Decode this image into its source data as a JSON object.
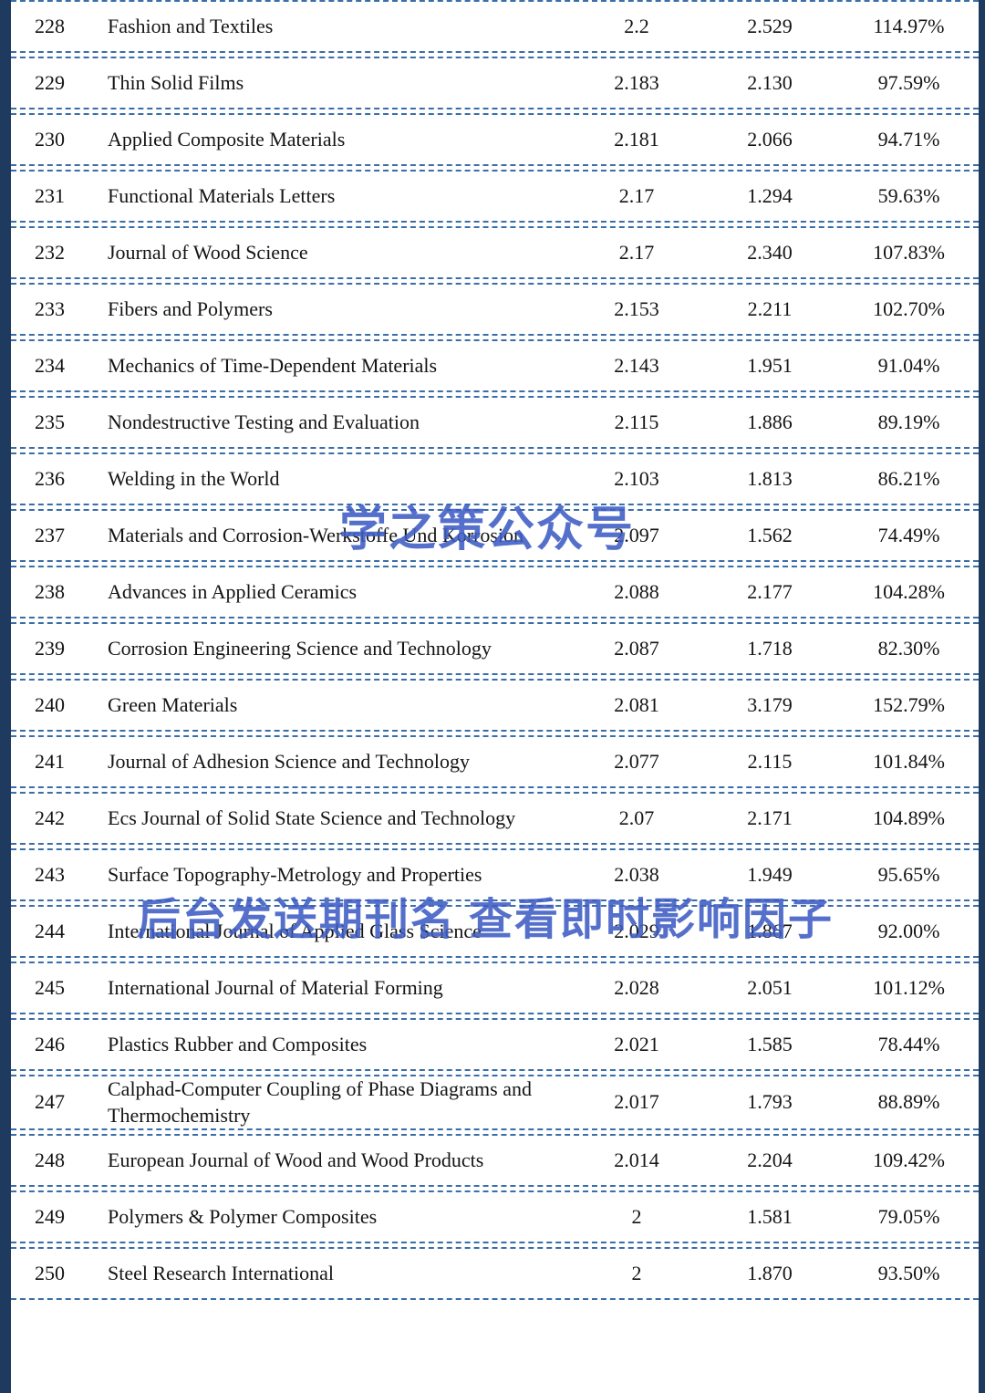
{
  "page": {
    "watermark_center": "学之策公众号",
    "watermark_lower": "后台发送期刊名 查看即时影响因子"
  },
  "colors": {
    "edge_bar": "#1f3a5f",
    "row_divider": "#3a6ea8",
    "watermark": "#3e5cc4",
    "text": "#141414"
  },
  "table": {
    "rows": [
      {
        "rank": "228",
        "journal": "Fashion and Textiles",
        "value1": "2.2",
        "value2": "2.529",
        "percent": "114.97%"
      },
      {
        "rank": "229",
        "journal": "Thin Solid Films",
        "value1": "2.183",
        "value2": "2.130",
        "percent": "97.59%"
      },
      {
        "rank": "230",
        "journal": "Applied Composite Materials",
        "value1": "2.181",
        "value2": "2.066",
        "percent": "94.71%"
      },
      {
        "rank": "231",
        "journal": "Functional Materials Letters",
        "value1": "2.17",
        "value2": "1.294",
        "percent": "59.63%"
      },
      {
        "rank": "232",
        "journal": "Journal of Wood Science",
        "value1": "2.17",
        "value2": "2.340",
        "percent": "107.83%"
      },
      {
        "rank": "233",
        "journal": "Fibers and Polymers",
        "value1": "2.153",
        "value2": "2.211",
        "percent": "102.70%"
      },
      {
        "rank": "234",
        "journal": "Mechanics of Time-Dependent Materials",
        "value1": "2.143",
        "value2": "1.951",
        "percent": "91.04%"
      },
      {
        "rank": "235",
        "journal": "Nondestructive Testing and Evaluation",
        "value1": "2.115",
        "value2": "1.886",
        "percent": "89.19%"
      },
      {
        "rank": "236",
        "journal": "Welding in the World",
        "value1": "2.103",
        "value2": "1.813",
        "percent": "86.21%"
      },
      {
        "rank": "237",
        "journal": "Materials and Corrosion-Werkstoffe Und Korrosion",
        "value1": "2.097",
        "value2": "1.562",
        "percent": "74.49%"
      },
      {
        "rank": "238",
        "journal": "Advances in Applied Ceramics",
        "value1": "2.088",
        "value2": "2.177",
        "percent": "104.28%"
      },
      {
        "rank": "239",
        "journal": "Corrosion Engineering Science and Technology",
        "value1": "2.087",
        "value2": "1.718",
        "percent": "82.30%"
      },
      {
        "rank": "240",
        "journal": "Green Materials",
        "value1": "2.081",
        "value2": "3.179",
        "percent": "152.79%"
      },
      {
        "rank": "241",
        "journal": "Journal of Adhesion Science and Technology",
        "value1": "2.077",
        "value2": "2.115",
        "percent": "101.84%"
      },
      {
        "rank": "242",
        "journal": "Ecs Journal of Solid State Science and Technology",
        "value1": "2.07",
        "value2": "2.171",
        "percent": "104.89%"
      },
      {
        "rank": "243",
        "journal": "Surface Topography-Metrology and Properties",
        "value1": "2.038",
        "value2": "1.949",
        "percent": "95.65%"
      },
      {
        "rank": "244",
        "journal": "International Journal of Applied Glass Science",
        "value1": "2.029",
        "value2": "1.867",
        "percent": "92.00%"
      },
      {
        "rank": "245",
        "journal": "International Journal of Material Forming",
        "value1": "2.028",
        "value2": "2.051",
        "percent": "101.12%"
      },
      {
        "rank": "246",
        "journal": "Plastics Rubber and Composites",
        "value1": "2.021",
        "value2": "1.585",
        "percent": "78.44%"
      },
      {
        "rank": "247",
        "journal": "Calphad-Computer Coupling of Phase Diagrams and Thermochemistry",
        "value1": "2.017",
        "value2": "1.793",
        "percent": "88.89%"
      },
      {
        "rank": "248",
        "journal": "European Journal of Wood and Wood Products",
        "value1": "2.014",
        "value2": "2.204",
        "percent": "109.42%"
      },
      {
        "rank": "249",
        "journal": "Polymers & Polymer Composites",
        "value1": "2",
        "value2": "1.581",
        "percent": "79.05%"
      },
      {
        "rank": "250",
        "journal": "Steel Research International",
        "value1": "2",
        "value2": "1.870",
        "percent": "93.50%"
      }
    ]
  }
}
